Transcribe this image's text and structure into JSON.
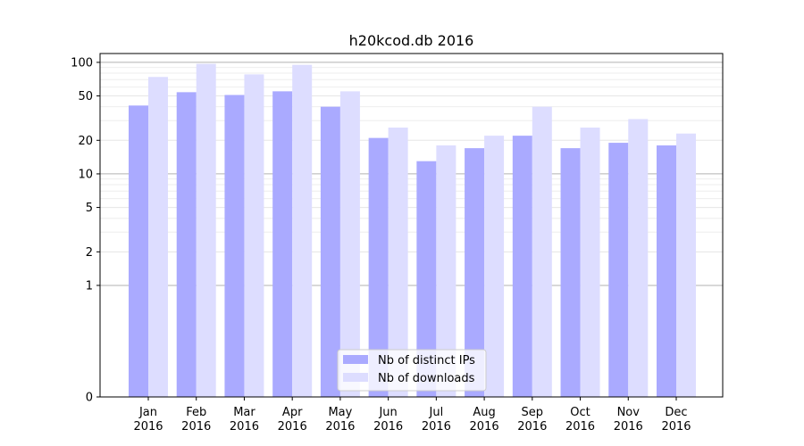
{
  "chart_data": {
    "type": "bar",
    "title": "h20kcod.db 2016",
    "xlabel": "",
    "ylabel": "",
    "y_scale": "symlog",
    "ylim": [
      0,
      120
    ],
    "y_ticks": [
      0,
      1,
      2,
      5,
      10,
      20,
      50,
      100
    ],
    "y_tick_labels": [
      "0",
      "1",
      "2",
      "5",
      "10",
      "20",
      "50",
      "100"
    ],
    "categories": [
      [
        "Jan",
        "2016"
      ],
      [
        "Feb",
        "2016"
      ],
      [
        "Mar",
        "2016"
      ],
      [
        "Apr",
        "2016"
      ],
      [
        "May",
        "2016"
      ],
      [
        "Jun",
        "2016"
      ],
      [
        "Jul",
        "2016"
      ],
      [
        "Aug",
        "2016"
      ],
      [
        "Sep",
        "2016"
      ],
      [
        "Oct",
        "2016"
      ],
      [
        "Nov",
        "2016"
      ],
      [
        "Dec",
        "2016"
      ]
    ],
    "series": [
      {
        "name": "Nb of distinct IPs",
        "color": "#aaaaff",
        "values": [
          41,
          54,
          51,
          55,
          40,
          21,
          13,
          17,
          22,
          17,
          19,
          18
        ]
      },
      {
        "name": "Nb of downloads",
        "color": "#ddddff",
        "values": [
          74,
          97,
          78,
          95,
          55,
          26,
          18,
          22,
          40,
          26,
          31,
          23
        ]
      }
    ],
    "grid": true,
    "legend_position": "lower-center"
  }
}
